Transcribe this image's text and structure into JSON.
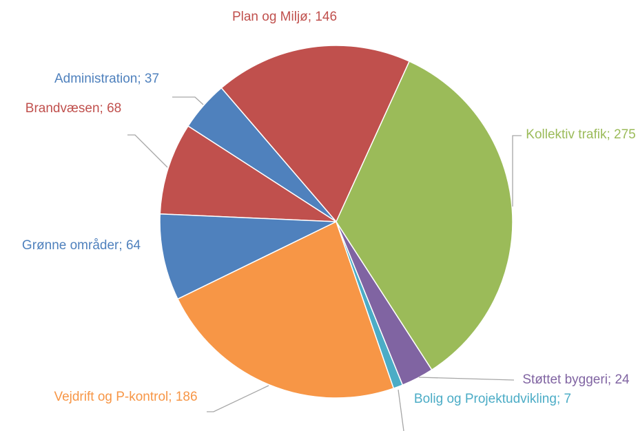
{
  "chart_data": {
    "type": "pie",
    "categories": [
      "Kollektiv trafik",
      "Støttet byggeri",
      "Bolig og Projektudvikling",
      "Vejdrift og P-kontrol",
      "Grønne områder",
      "Brandvæsen",
      "Administration",
      "Plan og Miljø"
    ],
    "values": [
      275,
      24,
      7,
      186,
      64,
      68,
      37,
      146
    ],
    "colors": [
      "#9bbb59",
      "#8064a2",
      "#4bacc6",
      "#f79646",
      "#4f81bd",
      "#c0504d",
      "#4f81bd",
      "#c0504d"
    ],
    "label_separator": "; "
  }
}
